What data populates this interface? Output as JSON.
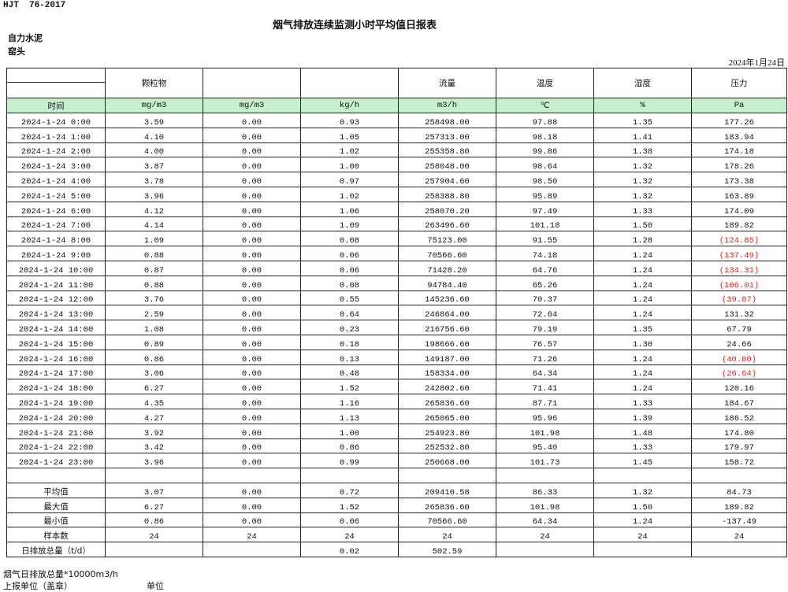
{
  "code": "HJT  76-2017",
  "title": "烟气排放连续监测小时平均值日报表",
  "company": "自力水泥",
  "location": "窑头",
  "date": "2024年1月24日",
  "table": {
    "header": [
      null,
      "颗粒物",
      null,
      null,
      "流量",
      "温度",
      "湿度",
      "压力"
    ],
    "units": [
      "时间",
      "mg/m3",
      "mg/m3",
      "kg/h",
      "m3/h",
      "℃",
      "%",
      "Pa"
    ],
    "rows": [
      [
        "2024-1-24 0:00",
        "3.59",
        "0.00",
        "0.93",
        "258498.00",
        "97.88",
        "1.35",
        "177.26"
      ],
      [
        "2024-1-24 1:00",
        "4.10",
        "0.00",
        "1.05",
        "257313.00",
        "98.18",
        "1.41",
        "183.94"
      ],
      [
        "2024-1-24 2:00",
        "4.00",
        "0.00",
        "1.02",
        "255358.80",
        "99.86",
        "1.38",
        "174.18"
      ],
      [
        "2024-1-24 3:00",
        "3.87",
        "0.00",
        "1.00",
        "258048.00",
        "98.64",
        "1.32",
        "178.26"
      ],
      [
        "2024-1-24 4:00",
        "3.78",
        "0.00",
        "0.97",
        "257904.60",
        "98.50",
        "1.32",
        "173.38"
      ],
      [
        "2024-1-24 5:00",
        "3.96",
        "0.00",
        "1.02",
        "258388.80",
        "95.89",
        "1.32",
        "163.89"
      ],
      [
        "2024-1-24 6:00",
        "4.12",
        "0.00",
        "1.06",
        "258070.20",
        "97.49",
        "1.33",
        "174.09"
      ],
      [
        "2024-1-24 7:00",
        "4.14",
        "0.00",
        "1.09",
        "263496.60",
        "101.18",
        "1.50",
        "189.82"
      ],
      [
        "2024-1-24 8:00",
        "1.09",
        "0.00",
        "0.08",
        "75123.00",
        "91.55",
        "1.28",
        "(124.85)"
      ],
      [
        "2024-1-24 9:00",
        "0.88",
        "0.00",
        "0.06",
        "70566.60",
        "74.18",
        "1.24",
        "(137.49)"
      ],
      [
        "2024-1-24 10:00",
        "0.87",
        "0.00",
        "0.06",
        "71428.20",
        "64.76",
        "1.24",
        "(134.31)"
      ],
      [
        "2024-1-24 11:00",
        "0.88",
        "0.00",
        "0.08",
        "94784.40",
        "65.26",
        "1.24",
        "(106.01)"
      ],
      [
        "2024-1-24 12:00",
        "3.76",
        "0.00",
        "0.55",
        "145236.60",
        "70.37",
        "1.24",
        "(39.87)"
      ],
      [
        "2024-1-24 13:00",
        "2.59",
        "0.00",
        "0.64",
        "246864.00",
        "72.64",
        "1.24",
        "131.32"
      ],
      [
        "2024-1-24 14:00",
        "1.08",
        "0.00",
        "0.23",
        "216756.60",
        "79.19",
        "1.35",
        "67.79"
      ],
      [
        "2024-1-24 15:00",
        "0.89",
        "0.00",
        "0.18",
        "198666.60",
        "76.57",
        "1.30",
        "24.66"
      ],
      [
        "2024-1-24 16:00",
        "0.86",
        "0.00",
        "0.13",
        "149187.00",
        "71.26",
        "1.24",
        "(40.80)"
      ],
      [
        "2024-1-24 17:00",
        "3.06",
        "0.00",
        "0.48",
        "158334.00",
        "64.34",
        "1.24",
        "(26.64)"
      ],
      [
        "2024-1-24 18:00",
        "6.27",
        "0.00",
        "1.52",
        "242802.60",
        "71.41",
        "1.24",
        "120.16"
      ],
      [
        "2024-1-24 19:00",
        "4.35",
        "0.00",
        "1.16",
        "265836.60",
        "87.71",
        "1.33",
        "184.67"
      ],
      [
        "2024-1-24 20:00",
        "4.27",
        "0.00",
        "1.13",
        "265065.00",
        "95.96",
        "1.39",
        "186.52"
      ],
      [
        "2024-1-24 21:00",
        "3.92",
        "0.00",
        "1.00",
        "254923.80",
        "101.98",
        "1.48",
        "174.80"
      ],
      [
        "2024-1-24 22:00",
        "3.42",
        "0.00",
        "0.86",
        "252532.80",
        "95.40",
        "1.33",
        "179.97"
      ],
      [
        "2024-1-24 23:00",
        "3.96",
        "0.00",
        "0.99",
        "250668.00",
        "101.73",
        "1.45",
        "158.72"
      ]
    ],
    "summary": [
      [
        "平均值",
        "3.07",
        "0.00",
        "0.72",
        "209410.58",
        "86.33",
        "1.32",
        "84.73"
      ],
      [
        "最大值",
        "6.27",
        "0.00",
        "1.52",
        "265836.60",
        "101.98",
        "1.50",
        "189.82"
      ],
      [
        "最小值",
        "0.86",
        "0.00",
        "0.06",
        "70566.60",
        "64.34",
        "1.24",
        "-137.49"
      ],
      [
        "样本数",
        "24",
        "24",
        "24",
        "24",
        "24",
        "24",
        "24"
      ],
      [
        "日排放总量（t/d）",
        null,
        null,
        "0.02",
        "502.59",
        null,
        null,
        null
      ]
    ]
  },
  "footer": {
    "note": "烟气日排放总量*10000m3/h",
    "reporter": "上报单位（盖章）",
    "unit": "单位"
  }
}
